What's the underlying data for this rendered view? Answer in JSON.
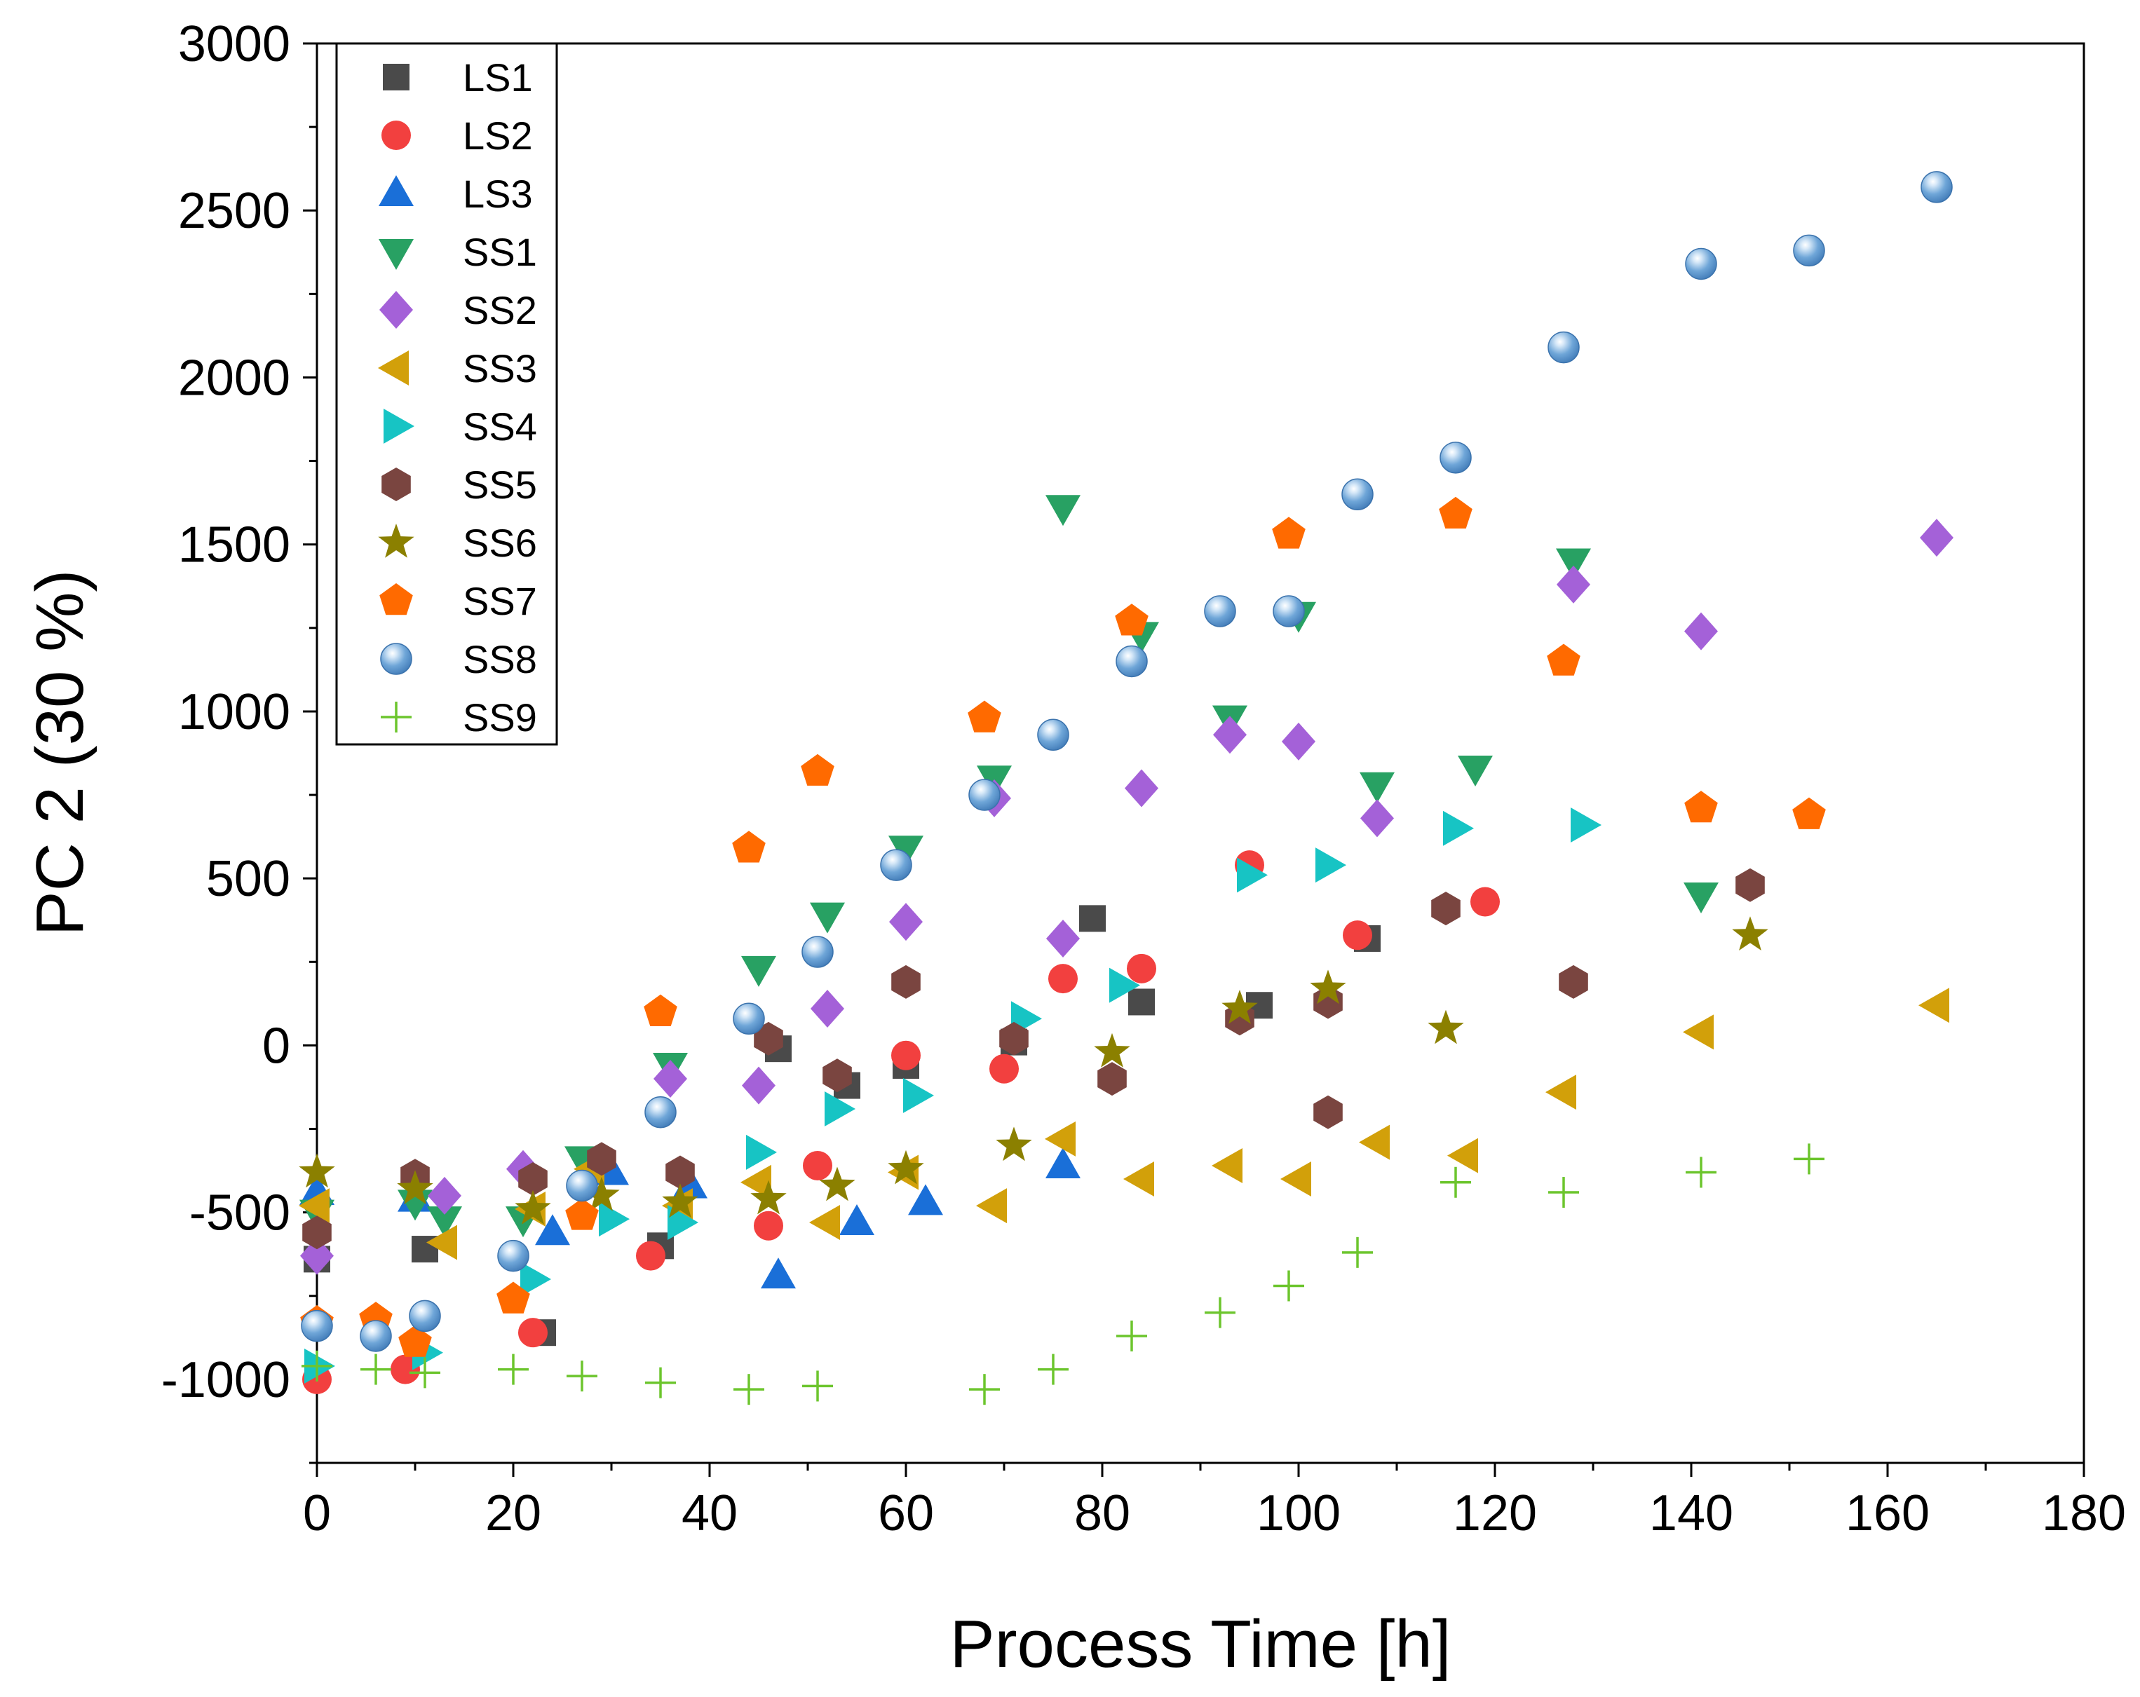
{
  "chart_data": {
    "type": "scatter",
    "title": "",
    "xlabel": "Process Time [h]",
    "ylabel": "PC 2 (30 %)",
    "xlim": [
      0,
      180
    ],
    "ylim": [
      -1250,
      3000
    ],
    "x_ticks": [
      0,
      20,
      40,
      60,
      80,
      100,
      120,
      140,
      160,
      180
    ],
    "y_ticks": [
      -1000,
      -500,
      0,
      500,
      1000,
      1500,
      2000,
      2500,
      3000
    ],
    "x_tick_labels": [
      "0",
      "20",
      "40",
      "60",
      "80",
      "100",
      "120",
      "140",
      "160",
      "180"
    ],
    "y_tick_labels": [
      "-1000",
      "-500",
      "0",
      "500",
      "1000",
      "1500",
      "2000",
      "2500",
      "3000"
    ],
    "grid": false,
    "legend_position": "top-left",
    "series": [
      {
        "name": "LS1",
        "marker": "square",
        "color": "#4a4a4a",
        "points": [
          [
            0,
            -640
          ],
          [
            11,
            -610
          ],
          [
            23,
            -860
          ],
          [
            35,
            -600
          ],
          [
            47,
            -10
          ],
          [
            54,
            -120
          ],
          [
            60,
            -60
          ],
          [
            71,
            10
          ],
          [
            79,
            380
          ],
          [
            84,
            130
          ],
          [
            96,
            120
          ],
          [
            107,
            320
          ]
        ]
      },
      {
        "name": "LS2",
        "marker": "circle",
        "color": "#f2403f",
        "points": [
          [
            0,
            -1000
          ],
          [
            9,
            -970
          ],
          [
            22,
            -860
          ],
          [
            34,
            -630
          ],
          [
            46,
            -540
          ],
          [
            51,
            -360
          ],
          [
            60,
            -30
          ],
          [
            70,
            -70
          ],
          [
            76,
            200
          ],
          [
            84,
            230
          ],
          [
            95,
            540
          ],
          [
            106,
            330
          ],
          [
            119,
            430
          ]
        ]
      },
      {
        "name": "LS3",
        "marker": "triangle-up",
        "color": "#1a6fd8",
        "points": [
          [
            0,
            -440
          ],
          [
            10,
            -460
          ],
          [
            24,
            -560
          ],
          [
            30,
            -380
          ],
          [
            38,
            -420
          ],
          [
            47,
            -690
          ],
          [
            55,
            -530
          ],
          [
            62,
            -470
          ],
          [
            76,
            -360
          ]
        ]
      },
      {
        "name": "SS1",
        "marker": "triangle-down",
        "color": "#28a163",
        "points": [
          [
            0,
            -500
          ],
          [
            10,
            -470
          ],
          [
            13,
            -520
          ],
          [
            21,
            -520
          ],
          [
            27,
            -340
          ],
          [
            36,
            -60
          ],
          [
            45,
            230
          ],
          [
            52,
            390
          ],
          [
            60,
            590
          ],
          [
            69,
            800
          ],
          [
            76,
            1610
          ],
          [
            84,
            1230
          ],
          [
            93,
            980
          ],
          [
            100,
            1290
          ],
          [
            108,
            780
          ],
          [
            118,
            830
          ],
          [
            128,
            1450
          ],
          [
            141,
            450
          ]
        ]
      },
      {
        "name": "SS2",
        "marker": "diamond",
        "color": "#a461d8",
        "points": [
          [
            0,
            -630
          ],
          [
            13,
            -450
          ],
          [
            21,
            -370
          ],
          [
            36,
            -100
          ],
          [
            45,
            -120
          ],
          [
            52,
            110
          ],
          [
            60,
            370
          ],
          [
            69,
            740
          ],
          [
            76,
            320
          ],
          [
            84,
            770
          ],
          [
            93,
            930
          ],
          [
            100,
            910
          ],
          [
            108,
            680
          ],
          [
            128,
            1380
          ],
          [
            141,
            1240
          ],
          [
            165,
            1520
          ]
        ]
      },
      {
        "name": "SS3",
        "marker": "triangle-left",
        "color": "#d2a00a",
        "points": [
          [
            0,
            -480
          ],
          [
            13,
            -590
          ],
          [
            22,
            -490
          ],
          [
            28,
            -370
          ],
          [
            37,
            -480
          ],
          [
            45,
            -410
          ],
          [
            52,
            -530
          ],
          [
            60,
            -380
          ],
          [
            69,
            -480
          ],
          [
            76,
            -280
          ],
          [
            84,
            -400
          ],
          [
            93,
            -360
          ],
          [
            100,
            -400
          ],
          [
            108,
            -290
          ],
          [
            117,
            -330
          ],
          [
            127,
            -140
          ],
          [
            141,
            40
          ],
          [
            165,
            120
          ]
        ]
      },
      {
        "name": "SS4",
        "marker": "triangle-right",
        "color": "#17c4c4",
        "points": [
          [
            0,
            -960
          ],
          [
            11,
            -920
          ],
          [
            22,
            -700
          ],
          [
            30,
            -520
          ],
          [
            37,
            -530
          ],
          [
            45,
            -320
          ],
          [
            53,
            -190
          ],
          [
            61,
            -150
          ],
          [
            72,
            80
          ],
          [
            82,
            180
          ],
          [
            95,
            510
          ],
          [
            103,
            540
          ],
          [
            116,
            650
          ],
          [
            129,
            660
          ]
        ]
      },
      {
        "name": "SS5",
        "marker": "hexagon",
        "color": "#7a4540",
        "points": [
          [
            0,
            -560
          ],
          [
            10,
            -390
          ],
          [
            22,
            -400
          ],
          [
            29,
            -340
          ],
          [
            37,
            -380
          ],
          [
            46,
            20
          ],
          [
            53,
            -90
          ],
          [
            60,
            190
          ],
          [
            71,
            20
          ],
          [
            81,
            -100
          ],
          [
            94,
            80
          ],
          [
            103,
            130
          ],
          [
            103,
            -200
          ],
          [
            115,
            410
          ],
          [
            128,
            190
          ],
          [
            146,
            480
          ]
        ]
      },
      {
        "name": "SS6",
        "marker": "star",
        "color": "#8b8000",
        "points": [
          [
            0,
            -380
          ],
          [
            10,
            -430
          ],
          [
            22,
            -490
          ],
          [
            29,
            -450
          ],
          [
            37,
            -470
          ],
          [
            46,
            -460
          ],
          [
            53,
            -420
          ],
          [
            60,
            -370
          ],
          [
            71,
            -300
          ],
          [
            81,
            -20
          ],
          [
            94,
            110
          ],
          [
            103,
            170
          ],
          [
            115,
            50
          ],
          [
            146,
            330
          ]
        ]
      },
      {
        "name": "SS7",
        "marker": "pentagon",
        "color": "#ff6a00",
        "points": [
          [
            0,
            -830
          ],
          [
            6,
            -820
          ],
          [
            10,
            -890
          ],
          [
            20,
            -760
          ],
          [
            27,
            -510
          ],
          [
            35,
            100
          ],
          [
            44,
            590
          ],
          [
            51,
            820
          ],
          [
            68,
            980
          ],
          [
            83,
            1270
          ],
          [
            99,
            1530
          ],
          [
            116,
            1590
          ],
          [
            127,
            1150
          ],
          [
            141,
            710
          ],
          [
            152,
            690
          ]
        ]
      },
      {
        "name": "SS8",
        "marker": "sphere",
        "color": "#5b9bd5",
        "points": [
          [
            0,
            -840
          ],
          [
            6,
            -870
          ],
          [
            11,
            -810
          ],
          [
            20,
            -630
          ],
          [
            27,
            -420
          ],
          [
            35,
            -200
          ],
          [
            44,
            80
          ],
          [
            51,
            280
          ],
          [
            59,
            540
          ],
          [
            68,
            750
          ],
          [
            75,
            930
          ],
          [
            83,
            1150
          ],
          [
            92,
            1300
          ],
          [
            99,
            1300
          ],
          [
            106,
            1650
          ],
          [
            116,
            1760
          ],
          [
            127,
            2090
          ],
          [
            141,
            2340
          ],
          [
            152,
            2380
          ],
          [
            165,
            2570
          ]
        ]
      },
      {
        "name": "SS9",
        "marker": "plus",
        "color": "#6cc52d",
        "points": [
          [
            0,
            -960
          ],
          [
            6,
            -970
          ],
          [
            11,
            -980
          ],
          [
            20,
            -970
          ],
          [
            27,
            -990
          ],
          [
            35,
            -1010
          ],
          [
            44,
            -1030
          ],
          [
            51,
            -1020
          ],
          [
            68,
            -1030
          ],
          [
            75,
            -970
          ],
          [
            83,
            -870
          ],
          [
            92,
            -800
          ],
          [
            99,
            -720
          ],
          [
            106,
            -620
          ],
          [
            116,
            -410
          ],
          [
            127,
            -440
          ],
          [
            141,
            -380
          ],
          [
            152,
            -340
          ]
        ]
      }
    ]
  }
}
